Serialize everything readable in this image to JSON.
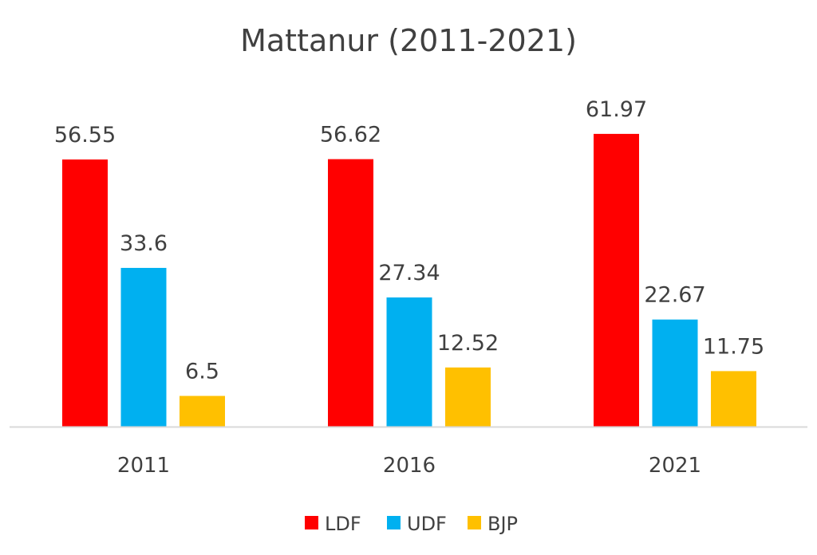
{
  "chart_data": {
    "type": "bar",
    "title": "Mattanur (2011-2021)",
    "categories": [
      "2011",
      "2016",
      "2021"
    ],
    "series": [
      {
        "name": "LDF",
        "color": "#FF0000",
        "values": [
          56.55,
          56.62,
          61.97
        ]
      },
      {
        "name": "UDF",
        "color": "#00B0F0",
        "values": [
          33.6,
          27.34,
          22.67
        ]
      },
      {
        "name": "BJP",
        "color": "#FFC000",
        "values": [
          6.5,
          12.52,
          11.75
        ]
      }
    ],
    "xlabel": "",
    "ylabel": "",
    "ylim": [
      0,
      62
    ],
    "grid": false,
    "data_labels": true,
    "legend_position": "bottom"
  }
}
